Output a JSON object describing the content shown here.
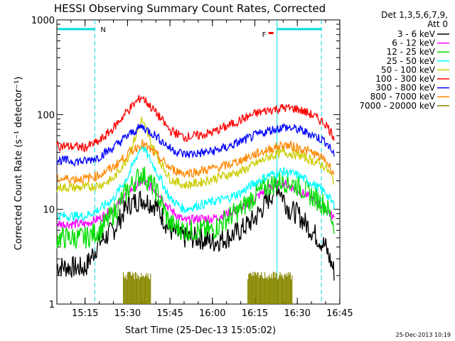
{
  "chart_data": {
    "type": "line",
    "title": "HESSI Observing Summary Count Rates, Corrected",
    "xlabel": "Start Time (25-Dec-13 15:05:02)",
    "ylabel": "Corrected Count Rate (s⁻¹ detector⁻¹)",
    "yscale": "log",
    "ylim": [
      1,
      1000
    ],
    "xlim_minutes": [
      0,
      100
    ],
    "x_ticks": [
      {
        "label": "15:15",
        "minutes": 9.97
      },
      {
        "label": "15:30",
        "minutes": 24.97
      },
      {
        "label": "15:45",
        "minutes": 39.97
      },
      {
        "label": "16:00",
        "minutes": 54.97
      },
      {
        "label": "16:15",
        "minutes": 69.97
      },
      {
        "label": "16:30",
        "minutes": 84.97
      },
      {
        "label": "16:45",
        "minutes": 99.97
      }
    ],
    "y_ticks": [
      {
        "label": "1",
        "value": 1
      },
      {
        "label": "10",
        "value": 10
      },
      {
        "label": "100",
        "value": 100
      },
      {
        "label": "1000",
        "value": 1000
      }
    ],
    "legend": {
      "header": [
        "Det 1,3,5,6,7,9,",
        "Att 0"
      ],
      "placement": "right"
    },
    "annotations": {
      "night_label": "N",
      "flare_label": "F",
      "date_stamp": "25-Dec-2013 10:19"
    },
    "series": [
      {
        "name": "3 - 6 keV",
        "color": "#000000",
        "x": [
          0,
          10,
          15,
          20,
          25,
          30,
          35,
          40,
          45,
          50,
          55,
          60,
          65,
          70,
          75,
          78,
          82,
          85,
          90,
          95,
          98
        ],
        "y": [
          2.5,
          2.4,
          4.5,
          6,
          11,
          13,
          11,
          6,
          5,
          5,
          4.5,
          5,
          6,
          8,
          13,
          18,
          10,
          9,
          6,
          4,
          2.2
        ]
      },
      {
        "name": "6 - 12 keV",
        "color": "#ff00ff",
        "x": [
          0,
          10,
          15,
          20,
          25,
          30,
          35,
          40,
          45,
          50,
          55,
          60,
          65,
          70,
          75,
          80,
          85,
          90,
          95,
          98
        ],
        "y": [
          7,
          7,
          8,
          10,
          15,
          20,
          16,
          10,
          7.5,
          8,
          8,
          9,
          10,
          13,
          17,
          19,
          16,
          13,
          10,
          8
        ]
      },
      {
        "name": "12 - 25 keV",
        "color": "#00dd00",
        "x": [
          0,
          10,
          15,
          20,
          25,
          30,
          35,
          40,
          45,
          50,
          55,
          60,
          65,
          70,
          75,
          80,
          85,
          90,
          95,
          98
        ],
        "y": [
          5,
          5,
          6,
          9,
          16,
          24,
          16,
          7,
          6,
          6,
          6,
          8,
          10,
          14,
          18,
          20,
          18,
          14,
          11,
          7
        ]
      },
      {
        "name": "25 - 50 keV",
        "color": "#00ffff",
        "x": [
          0,
          10,
          15,
          20,
          25,
          30,
          35,
          40,
          45,
          50,
          55,
          60,
          65,
          70,
          75,
          80,
          85,
          90,
          95,
          98
        ],
        "y": [
          8.5,
          8.5,
          10,
          13,
          22,
          48,
          26,
          13,
          10,
          11,
          12,
          13,
          15,
          19,
          23,
          25,
          23,
          19,
          15,
          11
        ]
      },
      {
        "name": "50 - 100 keV",
        "color": "#cccc00",
        "x": [
          0,
          10,
          15,
          20,
          25,
          30,
          35,
          40,
          45,
          50,
          55,
          60,
          65,
          70,
          75,
          80,
          85,
          90,
          95,
          98
        ],
        "y": [
          17,
          17,
          18,
          21,
          35,
          88,
          38,
          21,
          18,
          19,
          21,
          23,
          25,
          30,
          36,
          40,
          38,
          33,
          28,
          20
        ]
      },
      {
        "name": "100 - 300 keV",
        "color": "#ff0000",
        "x": [
          0,
          10,
          15,
          20,
          25,
          30,
          35,
          40,
          45,
          50,
          55,
          60,
          65,
          70,
          75,
          80,
          85,
          90,
          95,
          98
        ],
        "y": [
          47,
          45,
          52,
          72,
          110,
          155,
          105,
          68,
          58,
          60,
          65,
          75,
          88,
          102,
          112,
          118,
          115,
          100,
          80,
          58
        ]
      },
      {
        "name": "300 - 800 keV",
        "color": "#0000ff",
        "x": [
          0,
          10,
          15,
          20,
          25,
          30,
          35,
          40,
          45,
          50,
          55,
          60,
          65,
          70,
          75,
          80,
          85,
          90,
          95,
          98
        ],
        "y": [
          33,
          32,
          36,
          45,
          60,
          75,
          60,
          44,
          38,
          39,
          41,
          45,
          52,
          60,
          68,
          74,
          70,
          62,
          52,
          38
        ]
      },
      {
        "name": "800 - 7000 keV",
        "color": "#ff8800",
        "x": [
          0,
          10,
          15,
          20,
          25,
          30,
          35,
          40,
          45,
          50,
          55,
          60,
          65,
          70,
          75,
          80,
          85,
          90,
          95,
          98
        ],
        "y": [
          21,
          21,
          23,
          28,
          38,
          50,
          38,
          27,
          24,
          25,
          27,
          29,
          33,
          38,
          43,
          48,
          45,
          40,
          33,
          24
        ]
      },
      {
        "name": "7000 - 20000 keV",
        "color": "#888800",
        "x": [
          24,
          24,
          33,
          33
        ],
        "y": [
          1,
          2,
          2,
          1
        ]
      }
    ]
  }
}
